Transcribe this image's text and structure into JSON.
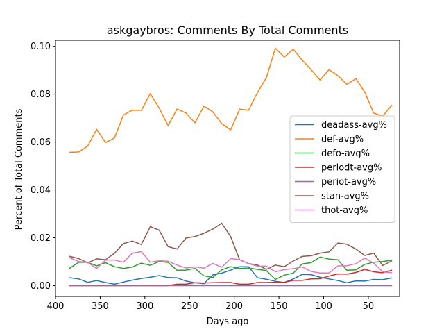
{
  "chart_data": {
    "type": "line",
    "title": "askgaybros: Comments By Total Comments",
    "xlabel": "Days ago",
    "ylabel": "Percent of Total Comments",
    "xlim": [
      400,
      15
    ],
    "ylim": [
      -0.0045,
      0.1025
    ],
    "xticks": [
      400,
      350,
      300,
      250,
      200,
      150,
      100,
      50
    ],
    "yticks": [
      0.0,
      0.02,
      0.04,
      0.06,
      0.08,
      0.1
    ],
    "xtick_labels": [
      "400",
      "350",
      "300",
      "250",
      "200",
      "150",
      "100",
      "50"
    ],
    "ytick_labels": [
      "0.00",
      "0.02",
      "0.04",
      "0.06",
      "0.08",
      "0.10"
    ],
    "grid": false,
    "legend_position": "center-right",
    "x": [
      384,
      374,
      364,
      354,
      344,
      334,
      324,
      314,
      304,
      294,
      284,
      274,
      264,
      254,
      244,
      234,
      224,
      214,
      204,
      194,
      184,
      174,
      164,
      154,
      144,
      134,
      124,
      114,
      104,
      94,
      84,
      74,
      64,
      54,
      44,
      34,
      24
    ],
    "series": [
      {
        "name": "deadass-avg%",
        "color": "#1f77b4",
        "values": [
          0.0033,
          0.0028,
          0.0014,
          0.0021,
          0.0013,
          0.0006,
          0.0015,
          0.0023,
          0.003,
          0.0035,
          0.0042,
          0.0034,
          0.0033,
          0.0019,
          0.0012,
          0.0008,
          0.0045,
          0.0052,
          0.0065,
          0.0079,
          0.0079,
          0.0033,
          0.0027,
          0.0018,
          0.0013,
          0.0028,
          0.0047,
          0.0046,
          0.0035,
          0.0028,
          0.0021,
          0.0012,
          0.002,
          0.0019,
          0.0026,
          0.0025,
          0.0032
        ]
      },
      {
        "name": "def-avg%",
        "color": "#ff7f0e",
        "values": [
          0.0557,
          0.0558,
          0.0583,
          0.0653,
          0.0598,
          0.0617,
          0.0713,
          0.0733,
          0.0732,
          0.0802,
          0.0742,
          0.0669,
          0.0738,
          0.0721,
          0.068,
          0.075,
          0.0726,
          0.0677,
          0.0651,
          0.0737,
          0.0733,
          0.0807,
          0.0869,
          0.0992,
          0.0955,
          0.0988,
          0.0942,
          0.0902,
          0.0859,
          0.0902,
          0.0877,
          0.0841,
          0.0865,
          0.0808,
          0.0721,
          0.0708,
          0.0753
        ]
      },
      {
        "name": "defo-avg%",
        "color": "#2ca02c",
        "values": [
          0.0073,
          0.0098,
          0.0097,
          0.0083,
          0.0096,
          0.0079,
          0.0072,
          0.0078,
          0.0094,
          0.0085,
          0.0101,
          0.0097,
          0.0064,
          0.0065,
          0.0072,
          0.0041,
          0.0034,
          0.0066,
          0.0079,
          0.0072,
          0.0074,
          0.0068,
          0.0063,
          0.0026,
          0.0044,
          0.0052,
          0.0091,
          0.0096,
          0.0119,
          0.0111,
          0.0108,
          0.0064,
          0.0066,
          0.0089,
          0.0098,
          0.0101,
          0.0106
        ]
      },
      {
        "name": "periodt-avg%",
        "color": "#d62728",
        "values": [
          0,
          0,
          0,
          0,
          0,
          0,
          0,
          0,
          0,
          0,
          0,
          0,
          0.0006,
          0.0006,
          0.0012,
          0.0011,
          0.0012,
          0.0013,
          0.0013,
          0.0006,
          0.0006,
          0.0013,
          0.0013,
          0.0014,
          0.0014,
          0.0022,
          0.0022,
          0.0028,
          0.0029,
          0.004,
          0.0049,
          0.0048,
          0.0055,
          0.0068,
          0.0058,
          0.0054,
          0.0064
        ]
      },
      {
        "name": "periot-avg%",
        "color": "#9467bd",
        "values": [
          0,
          0,
          0,
          0,
          0,
          0,
          0,
          0,
          0,
          0,
          0,
          0,
          0,
          0,
          0,
          0,
          0,
          0,
          0,
          0,
          0,
          0,
          0,
          0,
          0,
          0,
          0,
          0,
          0,
          0,
          0,
          0,
          0,
          0,
          0,
          0,
          0
        ]
      },
      {
        "name": "stan-avg%",
        "color": "#8c564b",
        "values": [
          0.0122,
          0.0113,
          0.0095,
          0.0112,
          0.0108,
          0.0135,
          0.0176,
          0.0186,
          0.0172,
          0.0246,
          0.0232,
          0.0163,
          0.0153,
          0.0199,
          0.0205,
          0.0219,
          0.0236,
          0.0261,
          0.0205,
          0.0108,
          0.0092,
          0.0086,
          0.0068,
          0.0086,
          0.0079,
          0.0103,
          0.0122,
          0.0125,
          0.0136,
          0.0141,
          0.0178,
          0.0173,
          0.0153,
          0.0126,
          0.0136,
          0.0084,
          0.0103
        ]
      },
      {
        "name": "thot-avg%",
        "color": "#e377c2",
        "values": [
          0.0116,
          0.0101,
          0.0097,
          0.0072,
          0.0107,
          0.0107,
          0.0098,
          0.0136,
          0.0142,
          0.0098,
          0.0104,
          0.0102,
          0.0086,
          0.0074,
          0.0078,
          0.0073,
          0.0093,
          0.0077,
          0.0113,
          0.0109,
          0.0092,
          0.0081,
          0.0082,
          0.0058,
          0.0067,
          0.0071,
          0.0078,
          0.0059,
          0.0053,
          0.0053,
          0.0083,
          0.0083,
          0.0092,
          0.0115,
          0.0094,
          0.0058,
          0.0054
        ]
      }
    ]
  }
}
